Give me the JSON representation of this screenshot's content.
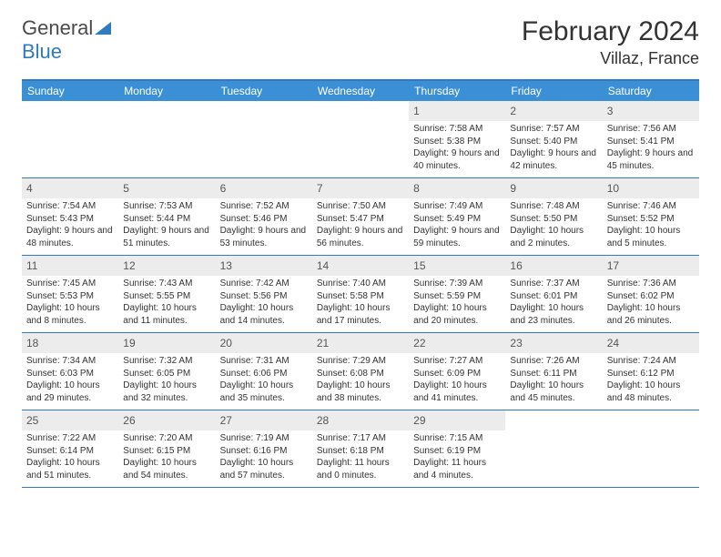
{
  "logo": {
    "part1": "General",
    "part2": "Blue"
  },
  "title": "February 2024",
  "location": "Villaz, France",
  "colors": {
    "header_bar": "#3b8fd4",
    "border": "#2f7bbf",
    "daynum_bg": "#ececec",
    "text": "#333333"
  },
  "weekdays": [
    "Sunday",
    "Monday",
    "Tuesday",
    "Wednesday",
    "Thursday",
    "Friday",
    "Saturday"
  ],
  "weeks": [
    [
      {
        "n": "",
        "sr": "",
        "ss": "",
        "dl": ""
      },
      {
        "n": "",
        "sr": "",
        "ss": "",
        "dl": ""
      },
      {
        "n": "",
        "sr": "",
        "ss": "",
        "dl": ""
      },
      {
        "n": "",
        "sr": "",
        "ss": "",
        "dl": ""
      },
      {
        "n": "1",
        "sr": "Sunrise: 7:58 AM",
        "ss": "Sunset: 5:38 PM",
        "dl": "Daylight: 9 hours and 40 minutes."
      },
      {
        "n": "2",
        "sr": "Sunrise: 7:57 AM",
        "ss": "Sunset: 5:40 PM",
        "dl": "Daylight: 9 hours and 42 minutes."
      },
      {
        "n": "3",
        "sr": "Sunrise: 7:56 AM",
        "ss": "Sunset: 5:41 PM",
        "dl": "Daylight: 9 hours and 45 minutes."
      }
    ],
    [
      {
        "n": "4",
        "sr": "Sunrise: 7:54 AM",
        "ss": "Sunset: 5:43 PM",
        "dl": "Daylight: 9 hours and 48 minutes."
      },
      {
        "n": "5",
        "sr": "Sunrise: 7:53 AM",
        "ss": "Sunset: 5:44 PM",
        "dl": "Daylight: 9 hours and 51 minutes."
      },
      {
        "n": "6",
        "sr": "Sunrise: 7:52 AM",
        "ss": "Sunset: 5:46 PM",
        "dl": "Daylight: 9 hours and 53 minutes."
      },
      {
        "n": "7",
        "sr": "Sunrise: 7:50 AM",
        "ss": "Sunset: 5:47 PM",
        "dl": "Daylight: 9 hours and 56 minutes."
      },
      {
        "n": "8",
        "sr": "Sunrise: 7:49 AM",
        "ss": "Sunset: 5:49 PM",
        "dl": "Daylight: 9 hours and 59 minutes."
      },
      {
        "n": "9",
        "sr": "Sunrise: 7:48 AM",
        "ss": "Sunset: 5:50 PM",
        "dl": "Daylight: 10 hours and 2 minutes."
      },
      {
        "n": "10",
        "sr": "Sunrise: 7:46 AM",
        "ss": "Sunset: 5:52 PM",
        "dl": "Daylight: 10 hours and 5 minutes."
      }
    ],
    [
      {
        "n": "11",
        "sr": "Sunrise: 7:45 AM",
        "ss": "Sunset: 5:53 PM",
        "dl": "Daylight: 10 hours and 8 minutes."
      },
      {
        "n": "12",
        "sr": "Sunrise: 7:43 AM",
        "ss": "Sunset: 5:55 PM",
        "dl": "Daylight: 10 hours and 11 minutes."
      },
      {
        "n": "13",
        "sr": "Sunrise: 7:42 AM",
        "ss": "Sunset: 5:56 PM",
        "dl": "Daylight: 10 hours and 14 minutes."
      },
      {
        "n": "14",
        "sr": "Sunrise: 7:40 AM",
        "ss": "Sunset: 5:58 PM",
        "dl": "Daylight: 10 hours and 17 minutes."
      },
      {
        "n": "15",
        "sr": "Sunrise: 7:39 AM",
        "ss": "Sunset: 5:59 PM",
        "dl": "Daylight: 10 hours and 20 minutes."
      },
      {
        "n": "16",
        "sr": "Sunrise: 7:37 AM",
        "ss": "Sunset: 6:01 PM",
        "dl": "Daylight: 10 hours and 23 minutes."
      },
      {
        "n": "17",
        "sr": "Sunrise: 7:36 AM",
        "ss": "Sunset: 6:02 PM",
        "dl": "Daylight: 10 hours and 26 minutes."
      }
    ],
    [
      {
        "n": "18",
        "sr": "Sunrise: 7:34 AM",
        "ss": "Sunset: 6:03 PM",
        "dl": "Daylight: 10 hours and 29 minutes."
      },
      {
        "n": "19",
        "sr": "Sunrise: 7:32 AM",
        "ss": "Sunset: 6:05 PM",
        "dl": "Daylight: 10 hours and 32 minutes."
      },
      {
        "n": "20",
        "sr": "Sunrise: 7:31 AM",
        "ss": "Sunset: 6:06 PM",
        "dl": "Daylight: 10 hours and 35 minutes."
      },
      {
        "n": "21",
        "sr": "Sunrise: 7:29 AM",
        "ss": "Sunset: 6:08 PM",
        "dl": "Daylight: 10 hours and 38 minutes."
      },
      {
        "n": "22",
        "sr": "Sunrise: 7:27 AM",
        "ss": "Sunset: 6:09 PM",
        "dl": "Daylight: 10 hours and 41 minutes."
      },
      {
        "n": "23",
        "sr": "Sunrise: 7:26 AM",
        "ss": "Sunset: 6:11 PM",
        "dl": "Daylight: 10 hours and 45 minutes."
      },
      {
        "n": "24",
        "sr": "Sunrise: 7:24 AM",
        "ss": "Sunset: 6:12 PM",
        "dl": "Daylight: 10 hours and 48 minutes."
      }
    ],
    [
      {
        "n": "25",
        "sr": "Sunrise: 7:22 AM",
        "ss": "Sunset: 6:14 PM",
        "dl": "Daylight: 10 hours and 51 minutes."
      },
      {
        "n": "26",
        "sr": "Sunrise: 7:20 AM",
        "ss": "Sunset: 6:15 PM",
        "dl": "Daylight: 10 hours and 54 minutes."
      },
      {
        "n": "27",
        "sr": "Sunrise: 7:19 AM",
        "ss": "Sunset: 6:16 PM",
        "dl": "Daylight: 10 hours and 57 minutes."
      },
      {
        "n": "28",
        "sr": "Sunrise: 7:17 AM",
        "ss": "Sunset: 6:18 PM",
        "dl": "Daylight: 11 hours and 0 minutes."
      },
      {
        "n": "29",
        "sr": "Sunrise: 7:15 AM",
        "ss": "Sunset: 6:19 PM",
        "dl": "Daylight: 11 hours and 4 minutes."
      },
      {
        "n": "",
        "sr": "",
        "ss": "",
        "dl": ""
      },
      {
        "n": "",
        "sr": "",
        "ss": "",
        "dl": ""
      }
    ]
  ]
}
